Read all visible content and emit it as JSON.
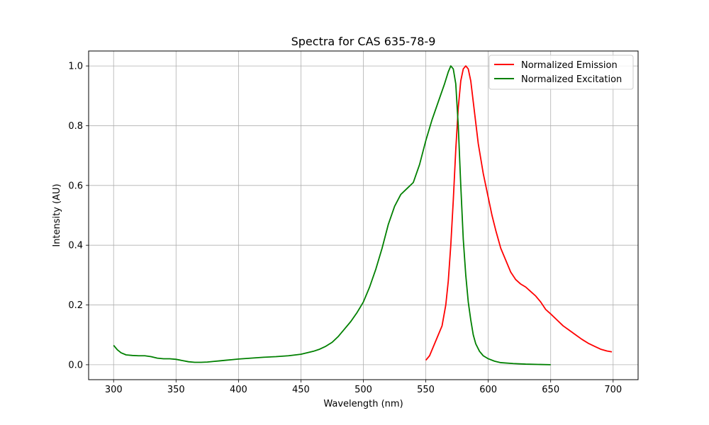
{
  "chart_data": {
    "type": "line",
    "title": "Spectra for CAS 635-78-9",
    "xlabel": "Wavelength (nm)",
    "ylabel": "Intensity (AU)",
    "xlim": [
      280,
      720
    ],
    "ylim": [
      -0.05,
      1.05
    ],
    "xticks": [
      300,
      350,
      400,
      450,
      500,
      550,
      600,
      650,
      700
    ],
    "xtick_labels": [
      "300",
      "350",
      "400",
      "450",
      "500",
      "550",
      "600",
      "650",
      "700"
    ],
    "yticks": [
      0.0,
      0.2,
      0.4,
      0.6,
      0.8,
      1.0
    ],
    "ytick_labels": [
      "0.0",
      "0.2",
      "0.4",
      "0.6",
      "0.8",
      "1.0"
    ],
    "grid": true,
    "legend_position": "top-right",
    "series": [
      {
        "name": "Normalized Emission",
        "color": "#ff0000",
        "x": [
          550,
          553,
          556,
          560,
          563,
          566,
          568,
          570,
          572,
          574,
          576,
          578,
          580,
          582,
          584,
          586,
          588,
          590,
          592,
          594,
          596,
          598,
          600,
          603,
          606,
          610,
          614,
          618,
          622,
          626,
          630,
          634,
          638,
          642,
          646,
          650,
          655,
          660,
          665,
          670,
          675,
          680,
          685,
          690,
          695,
          699
        ],
        "y": [
          0.015,
          0.03,
          0.06,
          0.1,
          0.13,
          0.2,
          0.28,
          0.4,
          0.55,
          0.72,
          0.86,
          0.95,
          0.99,
          1.0,
          0.99,
          0.95,
          0.88,
          0.81,
          0.74,
          0.69,
          0.64,
          0.6,
          0.56,
          0.5,
          0.45,
          0.39,
          0.35,
          0.31,
          0.285,
          0.27,
          0.26,
          0.245,
          0.23,
          0.21,
          0.185,
          0.17,
          0.15,
          0.13,
          0.115,
          0.1,
          0.085,
          0.072,
          0.062,
          0.052,
          0.046,
          0.043
        ]
      },
      {
        "name": "Normalized Excitation",
        "color": "#008000",
        "x": [
          300,
          303,
          306,
          310,
          315,
          320,
          325,
          330,
          335,
          340,
          345,
          350,
          355,
          360,
          365,
          370,
          375,
          380,
          385,
          390,
          395,
          400,
          410,
          420,
          430,
          440,
          450,
          455,
          460,
          465,
          470,
          475,
          480,
          485,
          490,
          495,
          500,
          505,
          510,
          515,
          520,
          525,
          530,
          535,
          540,
          545,
          550,
          555,
          560,
          565,
          568,
          570,
          572,
          574,
          576,
          578,
          580,
          582,
          584,
          586,
          588,
          590,
          593,
          596,
          600,
          605,
          610,
          620,
          630,
          640,
          650
        ],
        "y": [
          0.065,
          0.05,
          0.04,
          0.033,
          0.031,
          0.03,
          0.03,
          0.027,
          0.022,
          0.02,
          0.02,
          0.018,
          0.014,
          0.01,
          0.008,
          0.008,
          0.009,
          0.011,
          0.013,
          0.015,
          0.017,
          0.019,
          0.022,
          0.025,
          0.027,
          0.03,
          0.035,
          0.04,
          0.045,
          0.052,
          0.062,
          0.075,
          0.095,
          0.12,
          0.145,
          0.175,
          0.21,
          0.26,
          0.32,
          0.39,
          0.47,
          0.53,
          0.57,
          0.59,
          0.61,
          0.67,
          0.75,
          0.82,
          0.88,
          0.94,
          0.98,
          1.0,
          0.99,
          0.94,
          0.8,
          0.6,
          0.42,
          0.3,
          0.21,
          0.15,
          0.1,
          0.07,
          0.045,
          0.03,
          0.02,
          0.012,
          0.007,
          0.004,
          0.002,
          0.001,
          0.0
        ]
      }
    ]
  }
}
